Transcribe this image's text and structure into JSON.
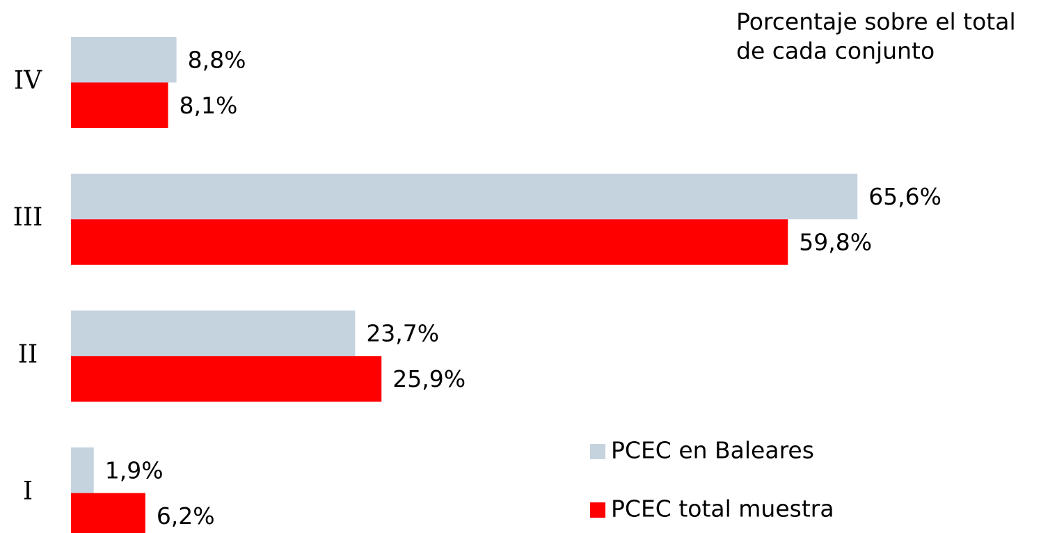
{
  "chart_data": {
    "type": "bar",
    "orientation": "horizontal",
    "title": [
      "Porcentaje sobre el total",
      "de cada conjunto"
    ],
    "categories": [
      "IV",
      "III",
      "II",
      "I"
    ],
    "series": [
      {
        "name": "PCEC en Baleares",
        "color": "#c5d3df",
        "values": [
          8.8,
          65.6,
          23.7,
          1.9
        ],
        "value_labels": [
          "8,8%",
          "65,6%",
          "23,7%",
          "1,9%"
        ]
      },
      {
        "name": "PCEC total muestra",
        "color": "#ff0000",
        "values": [
          8.1,
          59.8,
          25.9,
          6.2
        ],
        "value_labels": [
          "8,1%",
          "59,8%",
          "25,9%",
          "6,2%"
        ]
      }
    ],
    "xlim": [
      0,
      70
    ],
    "grid": false,
    "legend": "lower right"
  }
}
